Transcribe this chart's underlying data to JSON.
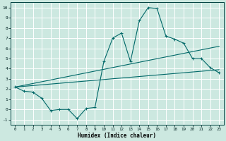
{
  "xlabel": "Humidex (Indice chaleur)",
  "bg_color": "#cce8e0",
  "grid_color": "#b8d8d0",
  "line_color": "#006868",
  "xlim": [
    -0.5,
    23.5
  ],
  "ylim": [
    -1.5,
    10.5
  ],
  "xticks": [
    0,
    1,
    2,
    3,
    4,
    5,
    6,
    7,
    8,
    9,
    10,
    11,
    12,
    13,
    14,
    15,
    16,
    17,
    18,
    19,
    20,
    21,
    22,
    23
  ],
  "yticks": [
    -1,
    0,
    1,
    2,
    3,
    4,
    5,
    6,
    7,
    8,
    9,
    10
  ],
  "line1_x": [
    0,
    1,
    2,
    3,
    4,
    5,
    6,
    7,
    8,
    9,
    10,
    11,
    12,
    13,
    14,
    15,
    16,
    17,
    18,
    19,
    20,
    21,
    22,
    23
  ],
  "line1_y": [
    2.2,
    1.8,
    1.7,
    1.1,
    -0.1,
    0.0,
    0.0,
    -0.9,
    0.1,
    0.2,
    4.7,
    7.0,
    7.5,
    4.7,
    8.7,
    10.0,
    9.9,
    7.2,
    6.9,
    6.5,
    5.0,
    5.0,
    4.1,
    3.6
  ],
  "line2_x": [
    0,
    23
  ],
  "line2_y": [
    2.2,
    6.2
  ],
  "line3_x": [
    0,
    23
  ],
  "line3_y": [
    2.2,
    3.9
  ],
  "markersize": 2.0
}
